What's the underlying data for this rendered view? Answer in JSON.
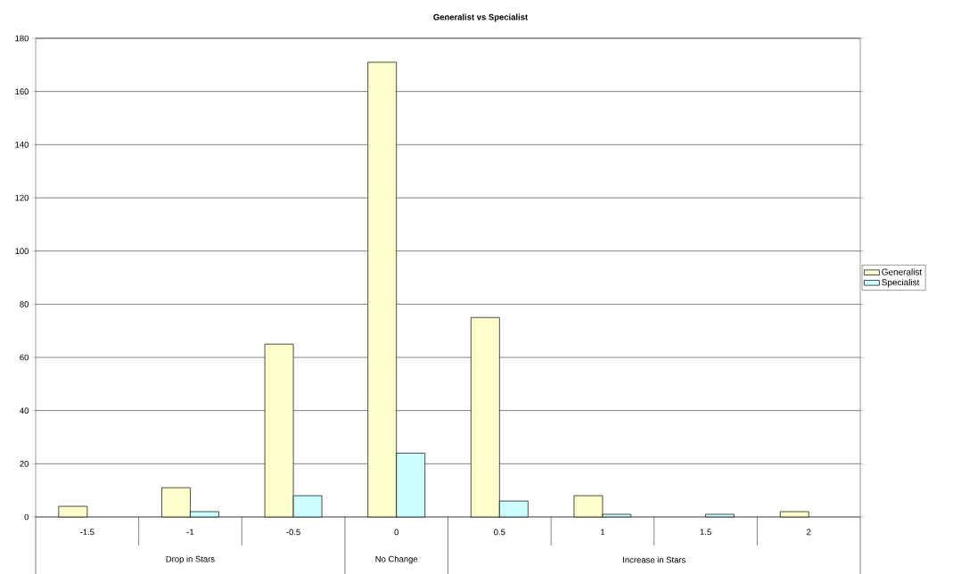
{
  "chart_data": {
    "type": "bar",
    "title": "Generalist vs Specialist",
    "categories": [
      "-1.5",
      "-1",
      "-0.5",
      "0",
      "0.5",
      "1",
      "1.5",
      "2"
    ],
    "series": [
      {
        "name": "Generalist",
        "color": "#ffffcc",
        "values": [
          4,
          11,
          65,
          171,
          75,
          8,
          null,
          2
        ]
      },
      {
        "name": "Specialist",
        "color": "#ccffff",
        "values": [
          null,
          2,
          8,
          24,
          6,
          1,
          1,
          null
        ]
      }
    ],
    "annotations": [
      "Drop in Stars",
      "No Change",
      "Increase in Stars"
    ],
    "ylim": [
      0,
      180
    ],
    "yticks": [
      0,
      20,
      40,
      60,
      80,
      100,
      120,
      140,
      160,
      180
    ],
    "grid": "y",
    "legend": "right"
  }
}
